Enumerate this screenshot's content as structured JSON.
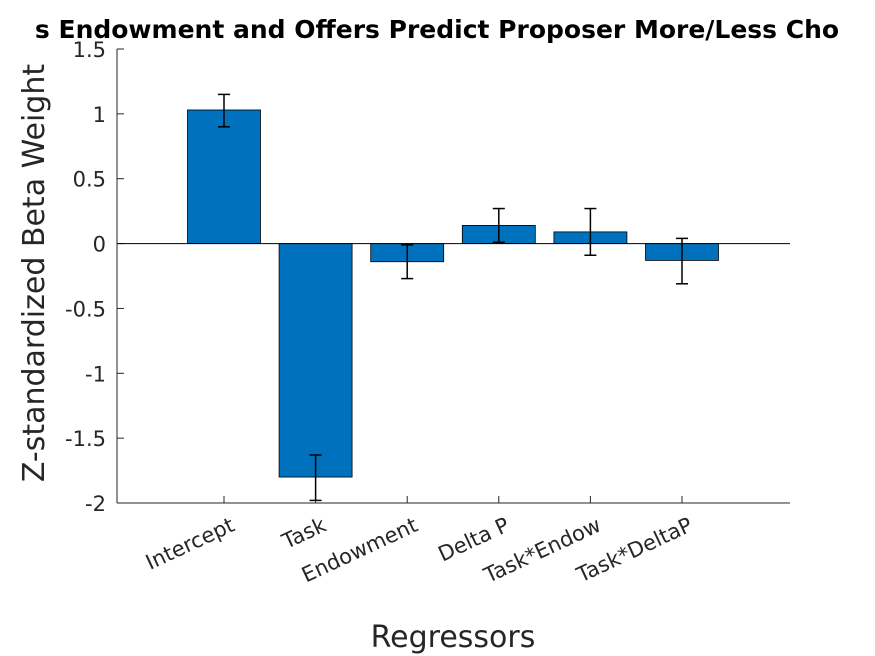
{
  "chart_data": {
    "type": "bar",
    "title": "s Endowment and Offers Predict Proposer More/Less Cho",
    "xlabel": "Regressors",
    "ylabel": "Z-standardized Beta Weight",
    "categories": [
      "Intercept",
      "Task",
      "Endowment",
      "Delta P",
      "Task*Endow",
      "Task*DeltaP"
    ],
    "values": [
      1.03,
      -1.8,
      -0.14,
      0.14,
      0.09,
      -0.13
    ],
    "error_low": [
      0.9,
      -1.98,
      -0.27,
      0.01,
      -0.09,
      -0.31
    ],
    "error_high": [
      1.15,
      -1.63,
      -0.01,
      0.27,
      0.27,
      0.04
    ],
    "ylim": [
      -2,
      1.5
    ],
    "yticks": [
      1.5,
      1,
      0.5,
      0,
      -0.5,
      -1,
      -1.5,
      -2
    ],
    "ytick_labels": [
      "1.5",
      "1",
      "0.5",
      "0",
      "-0.5",
      "-1",
      "-1.5",
      "-2"
    ],
    "grid": false,
    "bar_color": "#0072BD",
    "bar_edge_color": "#000000"
  }
}
